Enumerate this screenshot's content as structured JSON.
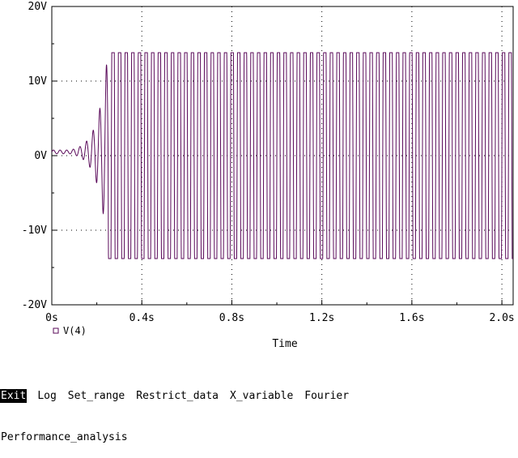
{
  "chart_data": {
    "type": "line",
    "xlabel": "Time",
    "ylabel": "",
    "xlim": [
      0,
      2.05
    ],
    "ylim": [
      -20,
      20
    ],
    "x_ticks": [
      {
        "value": 0,
        "label": "0s"
      },
      {
        "value": 0.4,
        "label": "0.4s"
      },
      {
        "value": 0.8,
        "label": "0.8s"
      },
      {
        "value": 1.2,
        "label": "1.2s"
      },
      {
        "value": 1.6,
        "label": "1.6s"
      },
      {
        "value": 2.0,
        "label": "2.0s"
      }
    ],
    "y_ticks": [
      {
        "value": 20,
        "label": "20V"
      },
      {
        "value": 10,
        "label": "10V"
      },
      {
        "value": 0,
        "label": "0V"
      },
      {
        "value": -10,
        "label": "-10V"
      },
      {
        "value": -20,
        "label": "-20V"
      }
    ],
    "grid": "dotted",
    "legend": {
      "placement": "bottom-left",
      "marker": "square"
    },
    "series": [
      {
        "name": "V(4)",
        "color": "#5a0a5a",
        "baseline": 0.5,
        "frequency_hz": 34,
        "growth_start_s": 0.08,
        "saturation_time_s": 0.25,
        "amplitude_max": 13.8,
        "amplitude_min": -13.8,
        "t_end": 2.05
      }
    ]
  },
  "menu": {
    "row1": [
      "Exit",
      "Log",
      "Set_range",
      "Restrict_data",
      "X_variable",
      "Fourier"
    ],
    "row2": [
      "Performance_analysis"
    ],
    "active": "Exit"
  }
}
